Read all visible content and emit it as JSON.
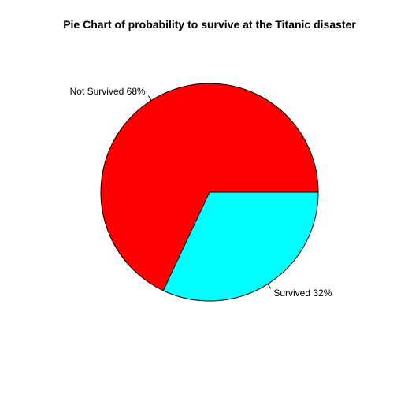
{
  "chart_data": {
    "type": "pie",
    "title": "Pie Chart of probability to survive at the Titanic disaster",
    "slices": [
      {
        "label": "Not Survived 68%",
        "value": 68,
        "color": "#ff0000"
      },
      {
        "label": "Survived 32%",
        "value": 32,
        "color": "#00ffff"
      }
    ],
    "start_angle_deg": 0,
    "direction": "counterclockwise",
    "border_color": "#000000"
  }
}
